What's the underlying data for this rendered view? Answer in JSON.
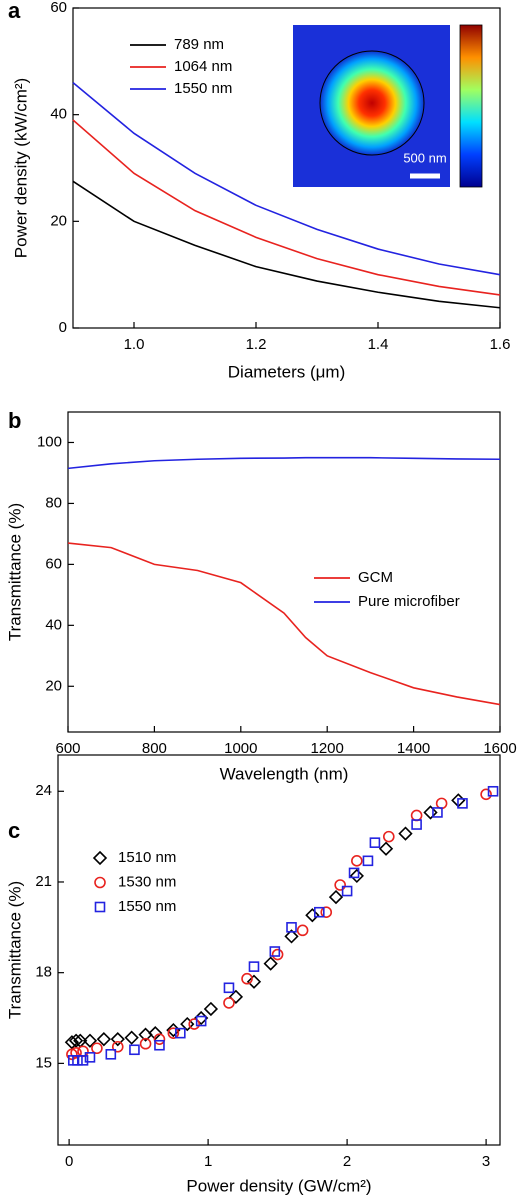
{
  "chart_data": [
    {
      "type": "line",
      "panel_label": "a",
      "xlabel": "Diameters (μm)",
      "ylabel": "Power density (kW/cm²)",
      "x": [
        0.9,
        1.0,
        1.1,
        1.2,
        1.3,
        1.4,
        1.5,
        1.6
      ],
      "series": [
        {
          "name": "789 nm",
          "color": "#000000",
          "values": [
            27.5,
            20,
            15.5,
            11.5,
            8.8,
            6.7,
            5,
            3.8
          ]
        },
        {
          "name": "1064 nm",
          "color": "#e8231f",
          "values": [
            39,
            29,
            22,
            17,
            13,
            10,
            7.8,
            6.2
          ]
        },
        {
          "name": "1550 nm",
          "color": "#2323e0",
          "values": [
            46,
            36.5,
            29,
            23,
            18.5,
            14.8,
            12,
            10
          ]
        }
      ],
      "xlim": [
        0.9,
        1.6
      ],
      "xticks": [
        {
          "value": 1,
          "label": "1.0"
        },
        1.2,
        1.4,
        1.6
      ],
      "ylim": [
        0,
        60
      ],
      "yticks": [
        0,
        20,
        40,
        60
      ],
      "legend": "upper left",
      "inset_scale_label": "500 nm"
    },
    {
      "type": "line",
      "panel_label": "b",
      "xlabel": "Wavelength (nm)",
      "ylabel": "Transmittance (%)",
      "x": [
        600,
        700,
        800,
        900,
        1000,
        1100,
        1150,
        1200,
        1300,
        1400,
        1500,
        1600
      ],
      "series": [
        {
          "name": "GCM",
          "color": "#e8231f",
          "values": [
            67,
            65.5,
            60,
            58,
            54,
            44,
            36,
            30,
            24.5,
            19.5,
            16.5,
            14
          ]
        },
        {
          "name": "Pure microfiber",
          "color": "#2323e0",
          "values": [
            91.5,
            93,
            94,
            94.5,
            94.8,
            94.9,
            95,
            95,
            95,
            94.8,
            94.6,
            94.5
          ]
        }
      ],
      "xlim": [
        600,
        1600
      ],
      "xticks": [
        600,
        800,
        1000,
        1200,
        1400,
        1600
      ],
      "ylim": [
        5,
        110
      ],
      "yticks": [
        20,
        40,
        60,
        80,
        100
      ],
      "legend": "center right"
    },
    {
      "type": "scatter",
      "panel_label": "c",
      "xlabel": "Power density (GW/cm²)",
      "ylabel": "Transmittance (%)",
      "series": [
        {
          "name": "1510 nm",
          "color": "#000000",
          "marker": "diamond",
          "x": [
            0.02,
            0.05,
            0.08,
            0.15,
            0.25,
            0.35,
            0.45,
            0.55,
            0.62,
            0.75,
            0.85,
            0.95,
            1.02,
            1.2,
            1.33,
            1.45,
            1.6,
            1.75,
            1.92,
            2.07,
            2.28,
            2.42,
            2.6,
            2.8
          ],
          "values": [
            15.7,
            15.75,
            15.75,
            15.75,
            15.8,
            15.8,
            15.85,
            15.95,
            16,
            16.1,
            16.3,
            16.5,
            16.8,
            17.2,
            17.7,
            18.3,
            19.2,
            19.9,
            20.5,
            21.2,
            22.1,
            22.6,
            23.3,
            23.7
          ]
        },
        {
          "name": "1530 nm",
          "color": "#e8231f",
          "marker": "circle",
          "x": [
            0.02,
            0.05,
            0.1,
            0.2,
            0.35,
            0.55,
            0.65,
            0.75,
            0.9,
            1.15,
            1.28,
            1.5,
            1.68,
            1.85,
            1.95,
            2.07,
            2.3,
            2.5,
            2.68,
            3.0
          ],
          "values": [
            15.3,
            15.35,
            15.4,
            15.5,
            15.55,
            15.65,
            15.8,
            16,
            16.3,
            17,
            17.8,
            18.6,
            19.4,
            20,
            20.9,
            21.7,
            22.5,
            23.2,
            23.6,
            23.9
          ]
        },
        {
          "name": "1550 nm",
          "color": "#2323e0",
          "marker": "square",
          "x": [
            0.03,
            0.06,
            0.1,
            0.15,
            0.3,
            0.47,
            0.65,
            0.8,
            0.95,
            1.15,
            1.33,
            1.48,
            1.6,
            1.8,
            2.0,
            2.05,
            2.15,
            2.2,
            2.5,
            2.65,
            2.83,
            3.05
          ],
          "values": [
            15.1,
            15.1,
            15.1,
            15.2,
            15.3,
            15.45,
            15.6,
            16,
            16.4,
            17.5,
            18.2,
            18.7,
            19.5,
            20,
            20.7,
            21.3,
            21.7,
            22.3,
            22.9,
            23.3,
            23.6,
            24
          ]
        }
      ],
      "xlim": [
        -0.08,
        3.1
      ],
      "xticks": [
        0,
        1,
        2,
        3
      ],
      "ylim": [
        12.3,
        25.2
      ],
      "yticks": [
        15,
        18,
        21,
        24
      ],
      "legend": "upper left"
    }
  ]
}
